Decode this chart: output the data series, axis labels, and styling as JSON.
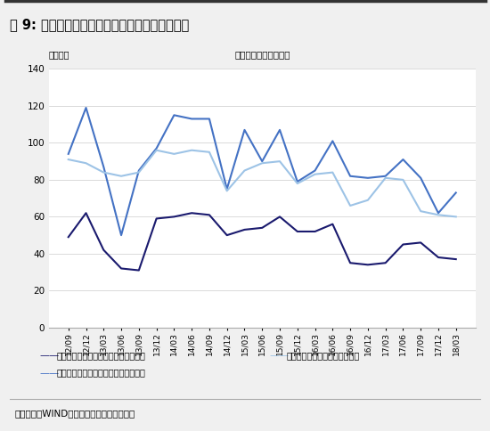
{
  "title": "图 9: 货币基金投资组合平均剩余期限变化趋势图",
  "subtitle": "投资组合平均剩余期限",
  "unit_label": "单位：天",
  "source_label": "资料来源：WIND、国信证券经济研究所整理",
  "x_labels": [
    "12/09",
    "12/12",
    "13/03",
    "13/06",
    "13/09",
    "13/12",
    "14/03",
    "14/06",
    "14/09",
    "14/12",
    "15/03",
    "15/06",
    "15/09",
    "15/12",
    "16/03",
    "16/06",
    "16/09",
    "16/12",
    "17/03",
    "17/06",
    "17/09",
    "17/12",
    "18/03"
  ],
  "min_values": [
    49,
    62,
    42,
    32,
    31,
    59,
    60,
    62,
    61,
    50,
    53,
    54,
    60,
    52,
    52,
    56,
    35,
    34,
    35,
    45,
    46,
    38,
    37
  ],
  "max_values": [
    94,
    119,
    87,
    50,
    85,
    97,
    115,
    113,
    113,
    75,
    107,
    90,
    107,
    79,
    85,
    101,
    82,
    81,
    82,
    91,
    81,
    62,
    73
  ],
  "end_values": [
    91,
    89,
    84,
    82,
    84,
    96,
    94,
    96,
    95,
    74,
    85,
    89,
    90,
    78,
    83,
    84,
    66,
    69,
    81,
    80,
    63,
    61,
    60
  ],
  "ylim": [
    0,
    140
  ],
  "yticks": [
    0,
    20,
    40,
    60,
    80,
    100,
    120,
    140
  ],
  "color_min": "#1a1a6e",
  "color_max": "#4472c4",
  "color_end": "#9dc3e6",
  "legend_min": "报告期内投资组合平均剩余期限最低值",
  "legend_max": "报告期内投资组合平均剩余期限最高值",
  "legend_end": "报告期末投资组合平均剩余期限",
  "background_color": "#ffffff",
  "fig_bg_color": "#f0f0f0"
}
